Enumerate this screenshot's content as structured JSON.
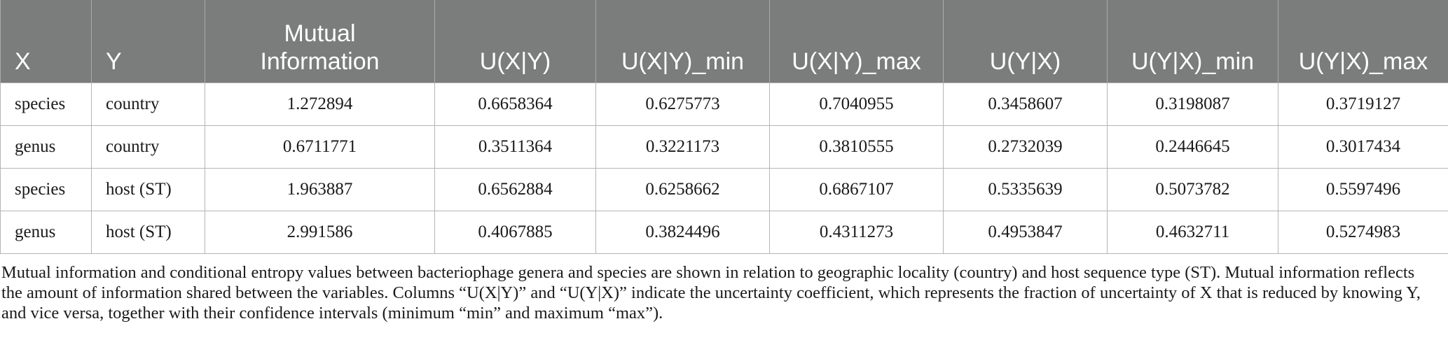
{
  "table": {
    "columns": [
      "X",
      "Y",
      "Mutual Information",
      "U(X|Y)",
      "U(X|Y)_min",
      "U(X|Y)_max",
      "U(Y|X)",
      "U(Y|X)_min",
      "U(Y|X)_max"
    ],
    "header_mi_line1": "Mutual",
    "header_mi_line2": "Information",
    "rows": [
      [
        "species",
        "country",
        "1.272894",
        "0.6658364",
        "0.6275773",
        "0.7040955",
        "0.3458607",
        "0.3198087",
        "0.3719127"
      ],
      [
        "genus",
        "country",
        "0.6711771",
        "0.3511364",
        "0.3221173",
        "0.3810555",
        "0.2732039",
        "0.2446645",
        "0.3017434"
      ],
      [
        "species",
        "host (ST)",
        "1.963887",
        "0.6562884",
        "0.6258662",
        "0.6867107",
        "0.5335639",
        "0.5073782",
        "0.5597496"
      ],
      [
        "genus",
        "host (ST)",
        "2.991586",
        "0.4067885",
        "0.3824496",
        "0.4311273",
        "0.4953847",
        "0.4632711",
        "0.5274983"
      ]
    ]
  },
  "caption": "Mutual information and conditional entropy values between bacteriophage genera and species are shown in relation to geographic locality (country) and host sequence type (ST). Mutual information reflects the amount of information shared between the variables. Columns “U(X|Y)” and “U(Y|X)” indicate the uncertainty coefficient, which represents the fraction of uncertainty of X that is reduced by knowing Y, and vice versa, together with their confidence intervals (minimum “min” and maximum “max”).",
  "colors": {
    "header_bg": "#7b7d7c",
    "header_text": "#ffffff",
    "grid": "#b5b5b5"
  }
}
